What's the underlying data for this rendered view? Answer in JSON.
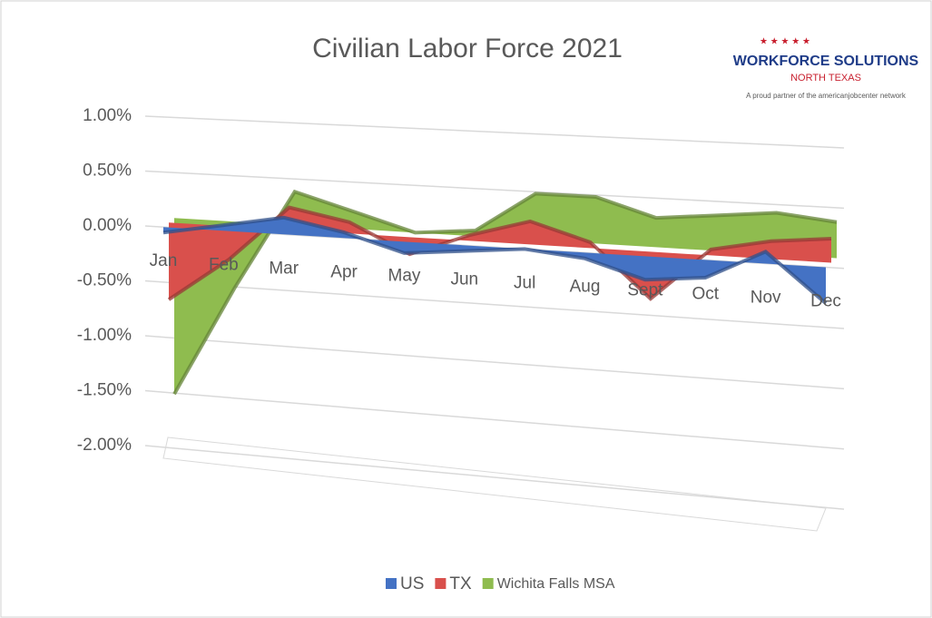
{
  "chart_data": {
    "type": "area3d",
    "title": "Civilian Labor Force 2021",
    "categories": [
      "Jan",
      "Feb",
      "Mar",
      "Apr",
      "May",
      "Jun",
      "Jul",
      "Aug",
      "Sept",
      "Oct",
      "Nov",
      "Dec"
    ],
    "series": [
      {
        "name": "US",
        "color": "#4472c4",
        "values": [
          -0.05,
          0.05,
          0.15,
          0.05,
          -0.1,
          -0.05,
          0.0,
          -0.05,
          -0.2,
          -0.15,
          0.1,
          -0.3
        ]
      },
      {
        "name": "TX",
        "color": "#d9504c",
        "values": [
          -0.7,
          -0.3,
          0.2,
          0.1,
          -0.15,
          0.05,
          0.2,
          0.05,
          -0.4,
          0.05,
          0.15,
          0.2
        ]
      },
      {
        "name": "Wichita Falls MSA",
        "color": "#8fbc4f",
        "values": [
          -1.6,
          -0.6,
          0.3,
          0.15,
          0.0,
          0.05,
          0.4,
          0.4,
          0.25,
          0.3,
          0.35,
          0.3
        ]
      }
    ],
    "ylim": [
      -2,
      1
    ],
    "yticks": [
      {
        "value": 1,
        "label": "1.00%"
      },
      {
        "value": 0.5,
        "label": "0.50%"
      },
      {
        "value": 0,
        "label": "0.00%"
      },
      {
        "value": -0.5,
        "label": "-0.50%"
      },
      {
        "value": -1,
        "label": "-1.00%"
      },
      {
        "value": -1.5,
        "label": "-1.50%"
      },
      {
        "value": -2,
        "label": "-2.00%"
      }
    ],
    "grid": true,
    "legend": "bottom"
  },
  "logo": {
    "name": "WORKFORCE SOLUTIONS",
    "region": "NORTH TEXAS",
    "tagline": "A proud partner of the americanjobcenter network"
  }
}
